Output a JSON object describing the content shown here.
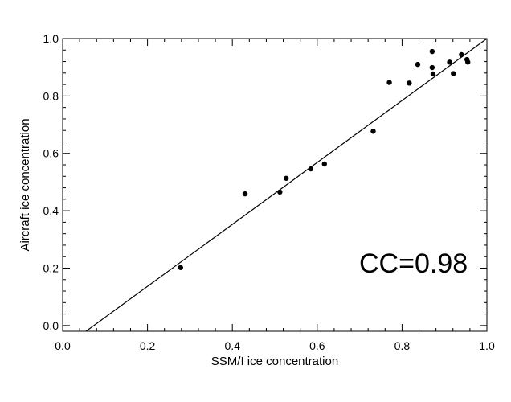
{
  "chart_data": {
    "type": "scatter",
    "xlabel": "SSM/I ice concentration",
    "ylabel": "Aircraft ice concentration",
    "xlim": [
      0.0,
      1.0
    ],
    "ylim": [
      -0.02,
      1.0
    ],
    "xticks": [
      0.0,
      0.2,
      0.4,
      0.6,
      0.8,
      1.0
    ],
    "xtick_labels": [
      "0.0",
      "0.2",
      "0.4",
      "0.6",
      "0.8",
      "1.0"
    ],
    "yticks": [
      0.0,
      0.2,
      0.4,
      0.6,
      0.8,
      1.0
    ],
    "ytick_labels": [
      "0.0",
      "0.2",
      "0.4",
      "0.6",
      "0.8",
      "1.0"
    ],
    "grid": false,
    "points": [
      {
        "x": 0.278,
        "y": 0.202
      },
      {
        "x": 0.43,
        "y": 0.459
      },
      {
        "x": 0.512,
        "y": 0.465
      },
      {
        "x": 0.527,
        "y": 0.513
      },
      {
        "x": 0.585,
        "y": 0.546
      },
      {
        "x": 0.617,
        "y": 0.563
      },
      {
        "x": 0.732,
        "y": 0.677
      },
      {
        "x": 0.77,
        "y": 0.847
      },
      {
        "x": 0.817,
        "y": 0.845
      },
      {
        "x": 0.837,
        "y": 0.91
      },
      {
        "x": 0.871,
        "y": 0.955
      },
      {
        "x": 0.871,
        "y": 0.899
      },
      {
        "x": 0.873,
        "y": 0.877
      },
      {
        "x": 0.912,
        "y": 0.918
      },
      {
        "x": 0.921,
        "y": 0.878
      },
      {
        "x": 0.94,
        "y": 0.944
      },
      {
        "x": 0.953,
        "y": 0.927
      },
      {
        "x": 0.955,
        "y": 0.918
      }
    ],
    "fit_line": {
      "x": [
        0.055,
        1.0
      ],
      "y": [
        -0.02,
        1.0
      ]
    },
    "annotation": "CC=0.98"
  }
}
